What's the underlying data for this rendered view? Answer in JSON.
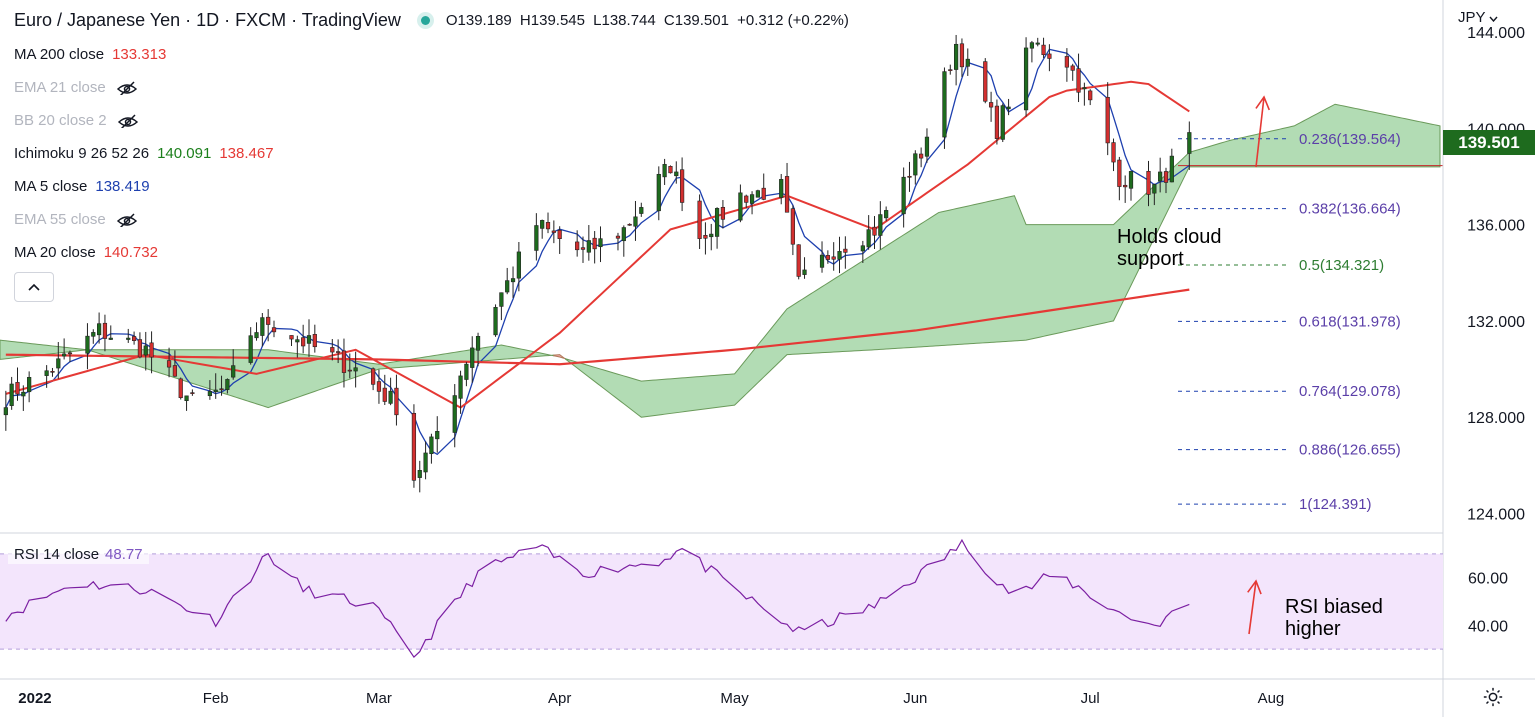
{
  "header": {
    "title": "Euro / Japanese Yen · 1D · FXCM · TradingView",
    "ohlc": {
      "o": "O139.189",
      "h": "H139.545",
      "l": "L138.744",
      "c": "C139.501",
      "chg": "+0.312 (+0.22%)"
    }
  },
  "indicators": [
    {
      "label": "MA 200 close",
      "values": [
        "133.313"
      ],
      "colors": [
        "#e53935"
      ],
      "hidden": false
    },
    {
      "label": "EMA 21 close",
      "values": [],
      "colors": [],
      "hidden": true
    },
    {
      "label": "BB 20 close 2",
      "values": [],
      "colors": [],
      "hidden": true
    },
    {
      "label": "Ichimoku 9 26 52 26",
      "values": [
        "140.091",
        "138.467"
      ],
      "colors": [
        "#1b7f1b",
        "#e53935"
      ],
      "hidden": false
    },
    {
      "label": "MA 5 close",
      "values": [
        "138.419"
      ],
      "colors": [
        "#1e40af"
      ],
      "hidden": false
    },
    {
      "label": "EMA 55 close",
      "values": [],
      "colors": [],
      "hidden": true
    },
    {
      "label": "MA 20 close",
      "values": [
        "140.732"
      ],
      "colors": [
        "#e53935"
      ],
      "hidden": false
    }
  ],
  "currency": "JPY",
  "last_price": "139.501",
  "rsi": {
    "label": "RSI 14 close",
    "value": "48.77",
    "ticks": [
      "60.00",
      "40.00"
    ]
  },
  "annotations": {
    "cloud": [
      "Holds cloud",
      "support"
    ],
    "rsi": [
      "RSI biased",
      "higher"
    ]
  },
  "colors": {
    "up": "#1e6b1e",
    "down": "#d32f2f",
    "ma5": "#1e40af",
    "ma20": "#e53935",
    "ma200": "#e53935",
    "cloud_bull": "#a5d6a7",
    "cloud_bear": "#ef9a9a",
    "rsi_line": "#7b1fa2",
    "rsi_band": "#f3e5fc",
    "fib": "#1e40af"
  },
  "chart_data": {
    "type": "candlestick",
    "symbol": "EURJPY",
    "timeframe": "1D",
    "y_ticks": [
      "144.000",
      "140.000",
      "136.000",
      "132.000",
      "128.000",
      "124.000"
    ],
    "y_tick_values": [
      144,
      140,
      136,
      132,
      128,
      124
    ],
    "x_ticks": [
      "2022",
      "Feb",
      "Mar",
      "Apr",
      "May",
      "Jun",
      "Jul",
      "Aug"
    ],
    "fib_levels": [
      {
        "label": "0.236(139.564)",
        "value": 139.564,
        "color": "#1e40af"
      },
      {
        "label": "0.382(136.664)",
        "value": 136.664,
        "color": "#1e40af"
      },
      {
        "label": "0.5(134.321)",
        "value": 134.321,
        "color": "#2e7d32"
      },
      {
        "label": "0.618(131.978)",
        "value": 131.978,
        "color": "#1e40af"
      },
      {
        "label": "0.764(129.078)",
        "value": 129.078,
        "color": "#1e40af"
      },
      {
        "label": "0.886(126.655)",
        "value": 126.655,
        "color": "#1e40af"
      },
      {
        "label": "1(124.391)",
        "value": 124.391,
        "color": "#1e40af"
      }
    ],
    "close_anchors": [
      [
        "2021-12-26",
        128.7
      ],
      [
        "2022-01-05",
        130.2
      ],
      [
        "2022-01-12",
        131.6
      ],
      [
        "2022-01-20",
        130.8
      ],
      [
        "2022-01-28",
        128.6
      ],
      [
        "2022-02-03",
        129.2
      ],
      [
        "2022-02-07",
        131.5
      ],
      [
        "2022-02-10",
        132.0
      ],
      [
        "2022-02-17",
        131.0
      ],
      [
        "2022-02-25",
        130.0
      ],
      [
        "2022-03-04",
        128.5
      ],
      [
        "2022-03-07",
        125.5
      ],
      [
        "2022-03-10",
        126.8
      ],
      [
        "2022-03-17",
        131.0
      ],
      [
        "2022-03-24",
        134.0
      ],
      [
        "2022-03-28",
        136.0
      ],
      [
        "2022-04-05",
        134.8
      ],
      [
        "2022-04-12",
        135.8
      ],
      [
        "2022-04-20",
        138.5
      ],
      [
        "2022-04-25",
        135.5
      ],
      [
        "2022-05-02",
        137.2
      ],
      [
        "2022-05-09",
        137.5
      ],
      [
        "2022-05-12",
        133.5
      ],
      [
        "2022-05-18",
        135.0
      ],
      [
        "2022-05-25",
        135.8
      ],
      [
        "2022-06-02",
        139.0
      ],
      [
        "2022-06-08",
        143.5
      ],
      [
        "2022-06-15",
        140.0
      ],
      [
        "2022-06-21",
        143.5
      ],
      [
        "2022-06-27",
        142.8
      ],
      [
        "2022-07-01",
        141.0
      ],
      [
        "2022-07-06",
        138.0
      ],
      [
        "2022-07-12",
        137.5
      ],
      [
        "2022-07-18",
        139.501
      ]
    ],
    "ma200_anchors": [
      [
        "2021-12-26",
        130.6
      ],
      [
        "2022-03-01",
        130.4
      ],
      [
        "2022-04-01",
        130.2
      ],
      [
        "2022-05-01",
        130.8
      ],
      [
        "2022-06-01",
        131.6
      ],
      [
        "2022-07-18",
        133.3
      ]
    ],
    "ma20_anchors": [
      [
        "2021-12-26",
        128.9
      ],
      [
        "2022-01-20",
        130.6
      ],
      [
        "2022-02-08",
        129.8
      ],
      [
        "2022-02-25",
        130.8
      ],
      [
        "2022-03-15",
        128.4
      ],
      [
        "2022-04-01",
        131.5
      ],
      [
        "2022-04-20",
        135.8
      ],
      [
        "2022-05-10",
        137.2
      ],
      [
        "2022-05-25",
        135.8
      ],
      [
        "2022-06-10",
        138.5
      ],
      [
        "2022-06-25",
        141.5
      ],
      [
        "2022-07-10",
        142.0
      ],
      [
        "2022-07-18",
        140.7
      ]
    ],
    "cloud_top_anchors": [
      [
        "2021-12-26",
        131.2
      ],
      [
        "2022-01-10",
        130.8
      ],
      [
        "2022-02-10",
        130.8
      ],
      [
        "2022-03-01",
        130.2
      ],
      [
        "2022-03-22",
        131.0
      ],
      [
        "2022-04-01",
        130.5
      ],
      [
        "2022-04-15",
        129.5
      ],
      [
        "2022-05-01",
        129.8
      ],
      [
        "2022-05-10",
        132.5
      ],
      [
        "2022-05-25",
        134.8
      ],
      [
        "2022-06-05",
        136.5
      ],
      [
        "2022-06-18",
        137.2
      ],
      [
        "2022-06-20",
        136.0
      ],
      [
        "2022-07-05",
        136.0
      ],
      [
        "2022-07-18",
        139.0
      ],
      [
        "2022-07-25",
        139.5
      ],
      [
        "2022-08-05",
        140.1
      ],
      [
        "2022-08-12",
        141.0
      ],
      [
        "2022-08-30",
        140.1
      ]
    ],
    "cloud_bottom_anchors": [
      [
        "2021-12-26",
        130.4
      ],
      [
        "2022-01-10",
        130.8
      ],
      [
        "2022-02-10",
        128.4
      ],
      [
        "2022-03-01",
        130.0
      ],
      [
        "2022-03-22",
        130.4
      ],
      [
        "2022-04-01",
        130.6
      ],
      [
        "2022-04-15",
        128.0
      ],
      [
        "2022-05-01",
        128.5
      ],
      [
        "2022-05-10",
        130.6
      ],
      [
        "2022-05-25",
        130.8
      ],
      [
        "2022-06-20",
        131.2
      ],
      [
        "2022-07-05",
        132.0
      ],
      [
        "2022-07-18",
        138.4
      ],
      [
        "2022-08-30",
        138.4
      ]
    ],
    "rsi_anchors": [
      [
        "2021-12-26",
        43
      ],
      [
        "2022-01-08",
        58
      ],
      [
        "2022-01-20",
        55
      ],
      [
        "2022-02-01",
        42
      ],
      [
        "2022-02-10",
        70
      ],
      [
        "2022-02-16",
        55
      ],
      [
        "2022-02-28",
        48
      ],
      [
        "2022-03-07",
        27
      ],
      [
        "2022-03-18",
        62
      ],
      [
        "2022-03-28",
        73
      ],
      [
        "2022-04-05",
        62
      ],
      [
        "2022-04-18",
        67
      ],
      [
        "2022-04-22",
        72
      ],
      [
        "2022-05-01",
        55
      ],
      [
        "2022-05-12",
        37
      ],
      [
        "2022-05-25",
        48
      ],
      [
        "2022-06-09",
        74
      ],
      [
        "2022-06-18",
        52
      ],
      [
        "2022-06-25",
        62
      ],
      [
        "2022-07-06",
        45
      ],
      [
        "2022-07-12",
        40
      ],
      [
        "2022-07-18",
        48.77
      ]
    ]
  }
}
